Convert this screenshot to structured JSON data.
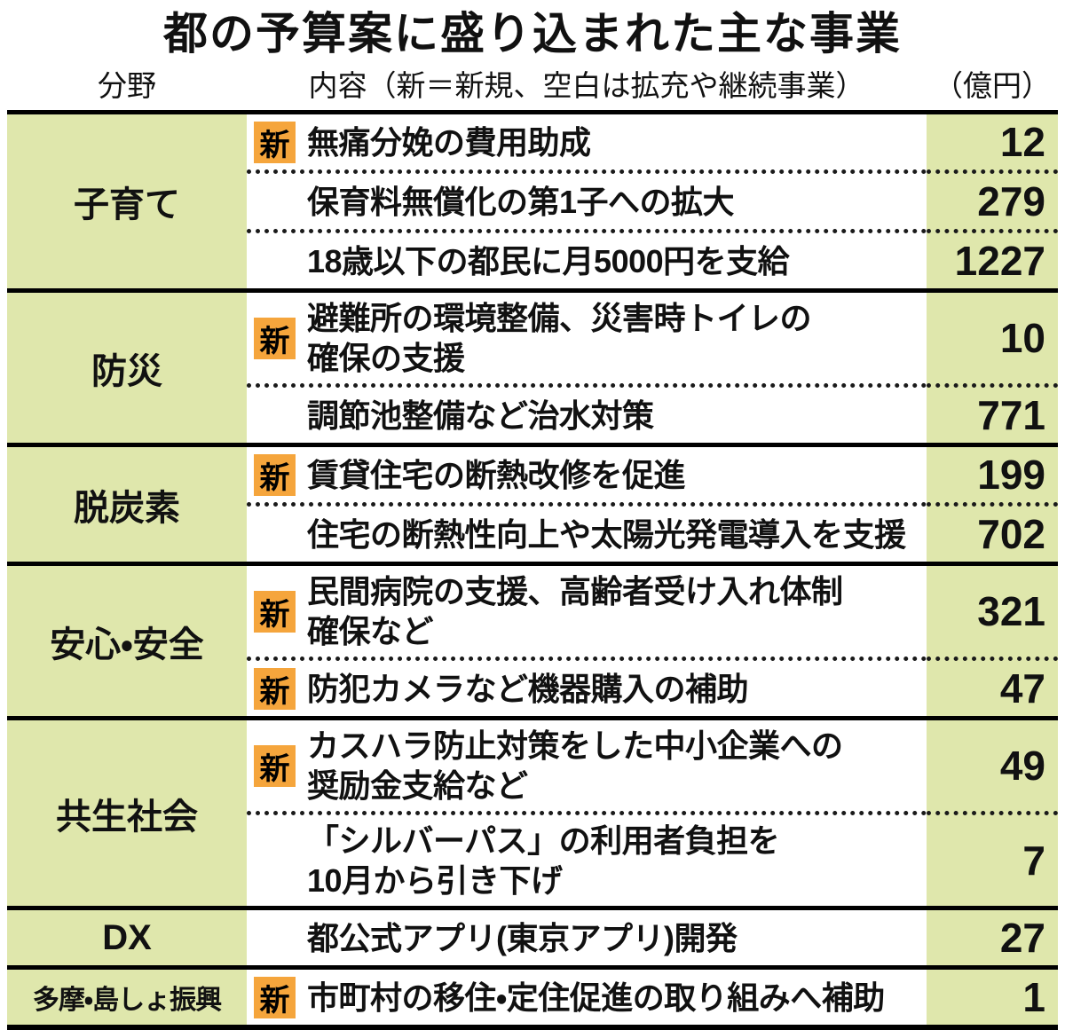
{
  "title": "都の予算案に盛り込まれた主な事業",
  "header": {
    "field": "分野",
    "content": "内容（新＝新規、空白は拡充や継続事業）",
    "amount": "（億円）"
  },
  "colors": {
    "row_band_bg": "#dfe7ac",
    "new_badge_bg": "#f5a53c",
    "border": "#000000",
    "text": "#111111"
  },
  "table": {
    "sections": [
      {
        "category": "子育て",
        "rows": [
          {
            "badge": "新",
            "content": "無痛分娩の費用助成",
            "amount": "12"
          },
          {
            "badge": "",
            "content": "保育料無償化の第1子への拡大",
            "amount": "279"
          },
          {
            "badge": "",
            "content": "18歳以下の都民に月5000円を支給",
            "amount": "1227"
          }
        ]
      },
      {
        "category": "防災",
        "rows": [
          {
            "badge": "新",
            "content": "避難所の環境整備、災害時トイレの\n確保の支援",
            "amount": "10"
          },
          {
            "badge": "",
            "content": "調節池整備など治水対策",
            "amount": "771"
          }
        ]
      },
      {
        "category": "脱炭素",
        "rows": [
          {
            "badge": "新",
            "content": "賃貸住宅の断熱改修を促進",
            "amount": "199"
          },
          {
            "badge": "",
            "content": "住宅の断熱性向上や太陽光発電導入を支援",
            "amount": "702"
          }
        ]
      },
      {
        "category": "安心・安全",
        "rows": [
          {
            "badge": "新",
            "content": "民間病院の支援、高齢者受け入れ体制\n確保など",
            "amount": "321"
          },
          {
            "badge": "新",
            "content": "防犯カメラなど機器購入の補助",
            "amount": "47"
          }
        ]
      },
      {
        "category": "共生社会",
        "rows": [
          {
            "badge": "新",
            "content": "カスハラ防止対策をした中小企業への\n奨励金支給など",
            "amount": "49"
          },
          {
            "badge": "",
            "content": "「シルバーパス」の利用者負担を\n10月から引き下げ",
            "amount": "7"
          }
        ]
      },
      {
        "category": "DX",
        "rows": [
          {
            "badge": "",
            "content": "都公式アプリ(東京アプリ)開発",
            "amount": "27"
          }
        ]
      },
      {
        "category": "多摩・島しょ振興",
        "rows": [
          {
            "badge": "新",
            "content": "市町村の移住・定住促進の取り組みへ補助",
            "amount": "1"
          }
        ]
      }
    ]
  },
  "chart_data": {
    "type": "table",
    "title": "都の予算案に盛り込まれた主な事業",
    "columns": [
      "分野",
      "内容（新＝新規、空白は拡充や継続事業）",
      "（億円）"
    ],
    "new_marker_label": "新",
    "rows": [
      {
        "category": "子育て",
        "is_new": true,
        "content": "無痛分娩の費用助成",
        "amount_oku_yen": 12
      },
      {
        "category": "子育て",
        "is_new": false,
        "content": "保育料無償化の第1子への拡大",
        "amount_oku_yen": 279
      },
      {
        "category": "子育て",
        "is_new": false,
        "content": "18歳以下の都民に月5000円を支給",
        "amount_oku_yen": 1227
      },
      {
        "category": "防災",
        "is_new": true,
        "content": "避難所の環境整備、災害時トイレの確保の支援",
        "amount_oku_yen": 10
      },
      {
        "category": "防災",
        "is_new": false,
        "content": "調節池整備など治水対策",
        "amount_oku_yen": 771
      },
      {
        "category": "脱炭素",
        "is_new": true,
        "content": "賃貸住宅の断熱改修を促進",
        "amount_oku_yen": 199
      },
      {
        "category": "脱炭素",
        "is_new": false,
        "content": "住宅の断熱性向上や太陽光発電導入を支援",
        "amount_oku_yen": 702
      },
      {
        "category": "安心・安全",
        "is_new": true,
        "content": "民間病院の支援、高齢者受け入れ体制確保など",
        "amount_oku_yen": 321
      },
      {
        "category": "安心・安全",
        "is_new": true,
        "content": "防犯カメラなど機器購入の補助",
        "amount_oku_yen": 47
      },
      {
        "category": "共生社会",
        "is_new": true,
        "content": "カスハラ防止対策をした中小企業への奨励金支給など",
        "amount_oku_yen": 49
      },
      {
        "category": "共生社会",
        "is_new": false,
        "content": "「シルバーパス」の利用者負担を10月から引き下げ",
        "amount_oku_yen": 7
      },
      {
        "category": "DX",
        "is_new": false,
        "content": "都公式アプリ(東京アプリ)開発",
        "amount_oku_yen": 27
      },
      {
        "category": "多摩・島しょ振興",
        "is_new": true,
        "content": "市町村の移住・定住促進の取り組みへ補助",
        "amount_oku_yen": 1
      }
    ]
  }
}
